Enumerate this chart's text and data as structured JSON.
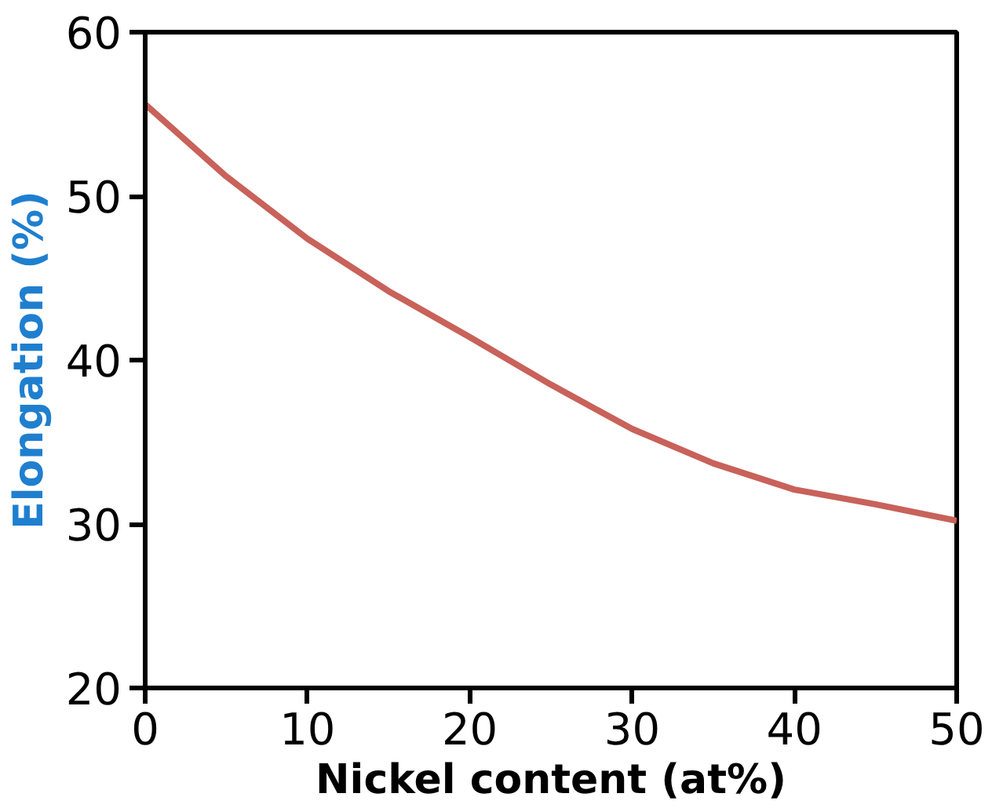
{
  "chart_data": {
    "type": "line",
    "xlabel": "Nickel content (at%)",
    "ylabel": "Elongation (%)",
    "x": [
      0,
      5,
      10,
      15,
      20,
      25,
      30,
      35,
      40,
      45,
      50
    ],
    "series": [
      {
        "color": "#c8625a",
        "values": [
          55.6,
          51.2,
          47.4,
          44.2,
          41.4,
          38.5,
          35.8,
          33.7,
          32.1,
          31.2,
          30.2
        ]
      }
    ],
    "xlim": [
      0,
      50
    ],
    "ylim": [
      20,
      60
    ],
    "xticks": [
      0,
      10,
      20,
      30,
      40,
      50
    ],
    "yticks": [
      20,
      30,
      40,
      50,
      60
    ],
    "grid": false,
    "marker": "none",
    "line_style": "solid"
  }
}
